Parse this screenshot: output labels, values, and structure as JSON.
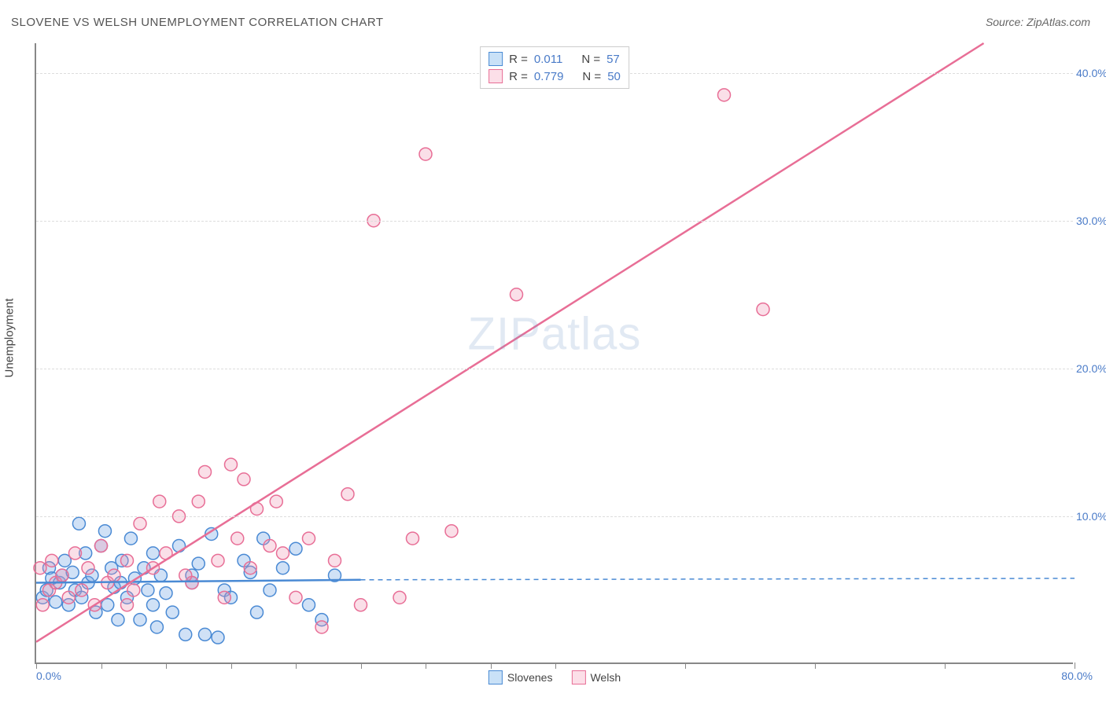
{
  "title": "SLOVENE VS WELSH UNEMPLOYMENT CORRELATION CHART",
  "source": "Source: ZipAtlas.com",
  "ylabel": "Unemployment",
  "watermark_a": "ZIP",
  "watermark_b": "atlas",
  "chart": {
    "type": "scatter",
    "xlim": [
      0,
      80
    ],
    "ylim": [
      0,
      42
    ],
    "x_label_start": "0.0%",
    "x_label_end": "80.0%",
    "y_ticks": [
      10,
      20,
      30,
      40
    ],
    "y_tick_labels": [
      "10.0%",
      "20.0%",
      "30.0%",
      "40.0%"
    ],
    "x_tick_positions": [
      0,
      5,
      10,
      15,
      20,
      25,
      30,
      35,
      40,
      50,
      60,
      70,
      80
    ],
    "grid_color": "#dddddd",
    "background_color": "#ffffff",
    "marker_radius": 8,
    "marker_stroke_width": 1.5
  },
  "series": [
    {
      "name": "Slovenes",
      "color_fill": "rgba(120,170,230,0.35)",
      "color_stroke": "#4a8ad4",
      "swatch_fill": "#c9e1f7",
      "swatch_stroke": "#4a8ad4",
      "stats": {
        "R": "0.011",
        "N": "57"
      },
      "trend": {
        "x1": 0,
        "y1": 5.5,
        "x2": 25,
        "y2": 5.7,
        "dash_x2": 80,
        "dash_y2": 5.8,
        "width": 2.5
      },
      "points": [
        [
          0.5,
          4.5
        ],
        [
          0.8,
          5.0
        ],
        [
          1.0,
          6.5
        ],
        [
          1.2,
          5.8
        ],
        [
          1.5,
          4.2
        ],
        [
          1.8,
          5.5
        ],
        [
          2.0,
          6.0
        ],
        [
          2.2,
          7.0
        ],
        [
          2.5,
          4.0
        ],
        [
          2.8,
          6.2
        ],
        [
          3.0,
          5.0
        ],
        [
          3.3,
          9.5
        ],
        [
          3.5,
          4.5
        ],
        [
          3.8,
          7.5
        ],
        [
          4.0,
          5.5
        ],
        [
          4.3,
          6.0
        ],
        [
          4.6,
          3.5
        ],
        [
          5.0,
          8.0
        ],
        [
          5.3,
          9.0
        ],
        [
          5.5,
          4.0
        ],
        [
          5.8,
          6.5
        ],
        [
          6.0,
          5.2
        ],
        [
          6.3,
          3.0
        ],
        [
          6.6,
          7.0
        ],
        [
          7.0,
          4.5
        ],
        [
          7.3,
          8.5
        ],
        [
          7.6,
          5.8
        ],
        [
          8.0,
          3.0
        ],
        [
          8.3,
          6.5
        ],
        [
          8.6,
          5.0
        ],
        [
          9.0,
          7.5
        ],
        [
          9.3,
          2.5
        ],
        [
          9.6,
          6.0
        ],
        [
          10.0,
          4.8
        ],
        [
          10.5,
          3.5
        ],
        [
          11.0,
          8.0
        ],
        [
          11.5,
          2.0
        ],
        [
          12.0,
          5.5
        ],
        [
          12.5,
          6.8
        ],
        [
          13.0,
          2.0
        ],
        [
          13.5,
          8.8
        ],
        [
          14.0,
          1.8
        ],
        [
          14.5,
          5.0
        ],
        [
          15.0,
          4.5
        ],
        [
          16.0,
          7.0
        ],
        [
          16.5,
          6.2
        ],
        [
          17.0,
          3.5
        ],
        [
          17.5,
          8.5
        ],
        [
          18.0,
          5.0
        ],
        [
          19.0,
          6.5
        ],
        [
          20.0,
          7.8
        ],
        [
          21.0,
          4.0
        ],
        [
          22.0,
          3.0
        ],
        [
          23.0,
          6.0
        ],
        [
          12.0,
          6.0
        ],
        [
          9.0,
          4.0
        ],
        [
          6.5,
          5.5
        ]
      ]
    },
    {
      "name": "Welsh",
      "color_fill": "rgba(240,150,180,0.30)",
      "color_stroke": "#e86e96",
      "swatch_fill": "#fcdfe8",
      "swatch_stroke": "#e86e96",
      "stats": {
        "R": "0.779",
        "N": "50"
      },
      "trend": {
        "x1": 0,
        "y1": 1.5,
        "x2": 73,
        "y2": 42,
        "width": 2.5
      },
      "points": [
        [
          0.3,
          6.5
        ],
        [
          0.5,
          4.0
        ],
        [
          1.0,
          5.0
        ],
        [
          1.2,
          7.0
        ],
        [
          1.5,
          5.5
        ],
        [
          2.0,
          6.0
        ],
        [
          2.5,
          4.5
        ],
        [
          3.0,
          7.5
        ],
        [
          3.5,
          5.0
        ],
        [
          4.0,
          6.5
        ],
        [
          4.5,
          4.0
        ],
        [
          5.0,
          8.0
        ],
        [
          5.5,
          5.5
        ],
        [
          6.0,
          6.0
        ],
        [
          7.0,
          7.0
        ],
        [
          7.5,
          5.0
        ],
        [
          8.0,
          9.5
        ],
        [
          9.0,
          6.5
        ],
        [
          10.0,
          7.5
        ],
        [
          11.0,
          10.0
        ],
        [
          12.0,
          5.5
        ],
        [
          12.5,
          11.0
        ],
        [
          13.0,
          13.0
        ],
        [
          14.0,
          7.0
        ],
        [
          15.0,
          13.5
        ],
        [
          15.5,
          8.5
        ],
        [
          16.0,
          12.5
        ],
        [
          17.0,
          10.5
        ],
        [
          18.0,
          8.0
        ],
        [
          18.5,
          11.0
        ],
        [
          19.0,
          7.5
        ],
        [
          20.0,
          4.5
        ],
        [
          21.0,
          8.5
        ],
        [
          22.0,
          2.5
        ],
        [
          23.0,
          7.0
        ],
        [
          24.0,
          11.5
        ],
        [
          25.0,
          4.0
        ],
        [
          26.0,
          30.0
        ],
        [
          28.0,
          4.5
        ],
        [
          29.0,
          8.5
        ],
        [
          30.0,
          34.5
        ],
        [
          32.0,
          9.0
        ],
        [
          37.0,
          25.0
        ],
        [
          53.0,
          38.5
        ],
        [
          56.0,
          24.0
        ],
        [
          11.5,
          6.0
        ],
        [
          9.5,
          11.0
        ],
        [
          14.5,
          4.5
        ],
        [
          16.5,
          6.5
        ],
        [
          7.0,
          4.0
        ]
      ]
    }
  ],
  "stats_labels": {
    "R": "R  =",
    "N": "N  ="
  }
}
